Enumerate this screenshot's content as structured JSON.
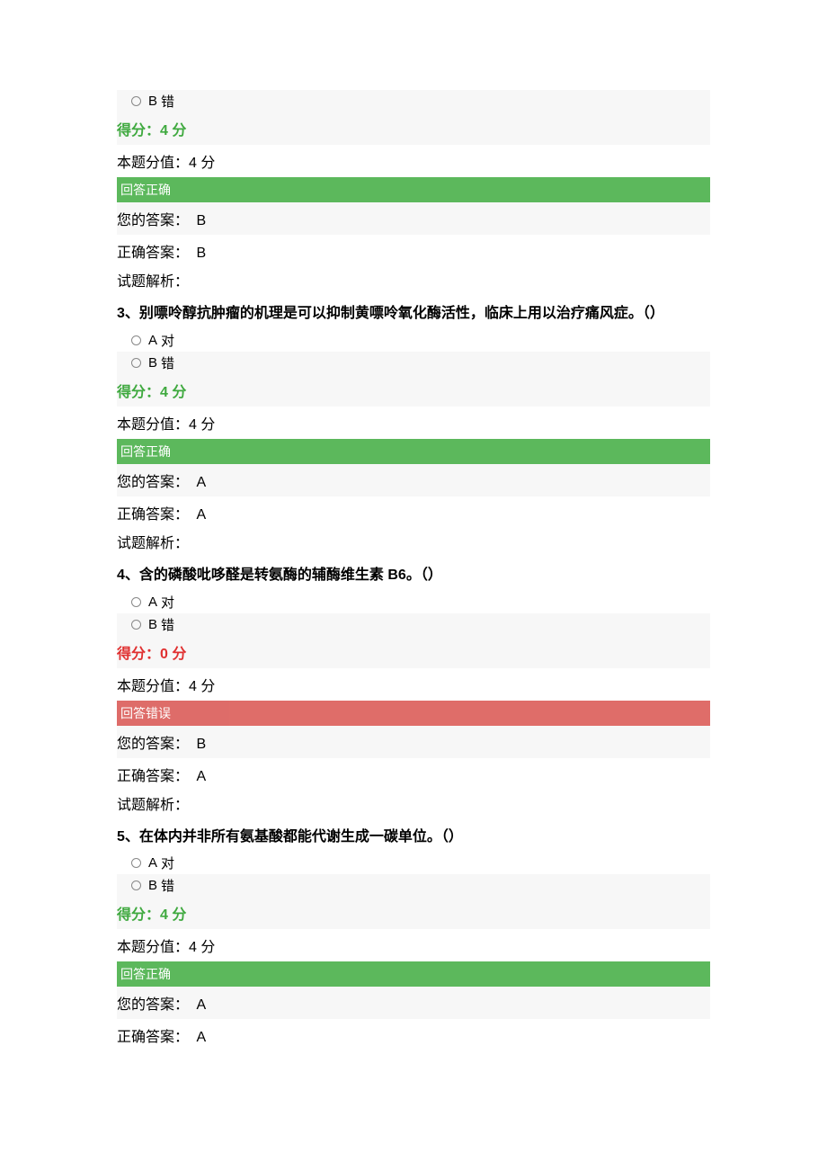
{
  "ui": {
    "score_label": "得分：",
    "score_unit": "分",
    "full_score_label": "本题分值：",
    "banner_correct": "回答正确",
    "banner_wrong": "回答错误",
    "your_answer_label": "您的答案：",
    "correct_answer_label": "正确答案：",
    "analysis_label": "试题解析：",
    "option_A_letter": "A",
    "option_B_letter": "B",
    "option_true_text": "对",
    "option_false_text": "错",
    "colors": {
      "score_correct": "#3fa93f",
      "score_wrong": "#e03030",
      "banner_correct_bg": "#5cb85c",
      "banner_wrong_bg": "#d9534f",
      "alt_row_bg": "#f7f7f7",
      "text": "#000000",
      "background": "#ffffff"
    },
    "fontsize": {
      "body": 16,
      "option": 15,
      "banner": 14
    }
  },
  "questions": [
    {
      "partial": true,
      "score": "4",
      "full_score": "4",
      "result": "correct",
      "your_answer": "B",
      "correct_answer": "B",
      "analysis": ""
    },
    {
      "number": "3",
      "text": "别嘌呤醇抗肿瘤的机理是可以抑制黄嘌呤氧化酶活性，临床上用以治疗痛风症。（）",
      "score": "4",
      "full_score": "4",
      "result": "correct",
      "your_answer": "A",
      "correct_answer": "A",
      "analysis": ""
    },
    {
      "number": "4",
      "text": "含的磷酸吡哆醛是转氨酶的辅酶维生素 B6。（）",
      "score": "0",
      "full_score": "4",
      "result": "wrong",
      "your_answer": "B",
      "correct_answer": "A",
      "analysis": ""
    },
    {
      "number": "5",
      "text": "在体内并非所有氨基酸都能代谢生成一碳单位。（）",
      "score": "4",
      "full_score": "4",
      "result": "correct",
      "your_answer": "A",
      "correct_answer": "A",
      "analysis": ""
    }
  ]
}
